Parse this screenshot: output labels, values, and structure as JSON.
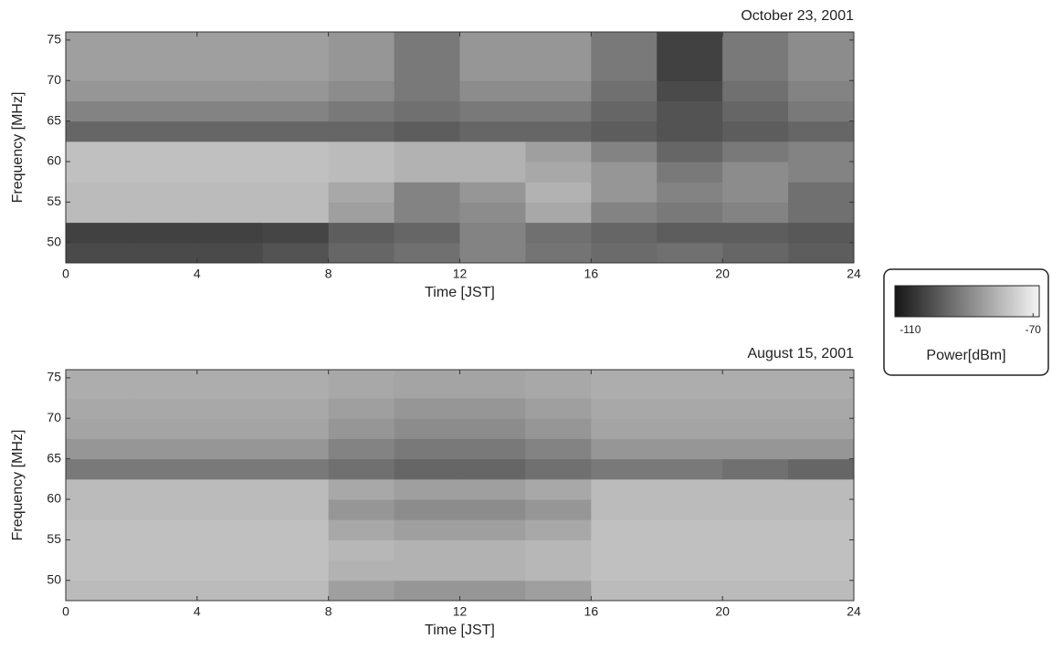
{
  "chart_data": [
    {
      "type": "heatmap",
      "title": "October 23, 2001",
      "x_label": "Time [JST]",
      "y_label": "Frequency [MHz]",
      "xlim": [
        0,
        24
      ],
      "ylim": [
        47.5,
        76
      ],
      "xticks": [
        0,
        4,
        8,
        12,
        16,
        20,
        24
      ],
      "yticks": [
        50,
        55,
        60,
        65,
        70,
        75
      ],
      "x_bins": [
        0,
        2,
        4,
        6,
        8,
        10,
        12,
        14,
        16,
        18,
        20,
        22,
        24
      ],
      "y_bins": [
        47.5,
        50,
        52.5,
        55,
        57.5,
        60,
        62.5,
        65,
        67.5,
        70,
        72.5,
        76
      ],
      "values": [
        [
          -104,
          -104,
          -104,
          -102,
          -98,
          -96,
          -92,
          -95,
          -97,
          -96,
          -98,
          -100
        ],
        [
          -106,
          -106,
          -106,
          -105,
          -100,
          -98,
          -92,
          -96,
          -98,
          -100,
          -100,
          -101
        ],
        [
          -80,
          -80,
          -80,
          -80,
          -86,
          -92,
          -90,
          -84,
          -92,
          -94,
          -92,
          -96
        ],
        [
          -80,
          -80,
          -80,
          -80,
          -84,
          -92,
          -88,
          -82,
          -88,
          -92,
          -90,
          -96
        ],
        [
          -79,
          -79,
          -79,
          -79,
          -80,
          -82,
          -82,
          -84,
          -88,
          -94,
          -90,
          -92
        ],
        [
          -79,
          -79,
          -79,
          -79,
          -80,
          -82,
          -82,
          -86,
          -92,
          -98,
          -94,
          -92
        ],
        [
          -98,
          -98,
          -98,
          -98,
          -98,
          -100,
          -98,
          -98,
          -100,
          -102,
          -100,
          -98
        ],
        [
          -92,
          -92,
          -92,
          -92,
          -94,
          -96,
          -94,
          -94,
          -98,
          -102,
          -98,
          -94
        ],
        [
          -88,
          -88,
          -88,
          -88,
          -90,
          -94,
          -90,
          -90,
          -96,
          -104,
          -96,
          -92
        ],
        [
          -86,
          -86,
          -86,
          -86,
          -88,
          -94,
          -88,
          -88,
          -94,
          -106,
          -94,
          -90
        ],
        [
          -86,
          -86,
          -86,
          -86,
          -88,
          -94,
          -88,
          -88,
          -94,
          -106,
          -94,
          -90
        ]
      ]
    },
    {
      "type": "heatmap",
      "title": "August 15, 2001",
      "x_label": "Time [JST]",
      "y_label": "Frequency [MHz]",
      "xlim": [
        0,
        24
      ],
      "ylim": [
        47.5,
        76
      ],
      "xticks": [
        0,
        4,
        8,
        12,
        16,
        20,
        24
      ],
      "yticks": [
        50,
        55,
        60,
        65,
        70,
        75
      ],
      "x_bins": [
        0,
        2,
        4,
        6,
        8,
        10,
        12,
        14,
        16,
        18,
        20,
        22,
        24
      ],
      "y_bins": [
        47.5,
        50,
        52.5,
        55,
        57.5,
        60,
        62.5,
        65,
        67.5,
        70,
        72.5,
        76
      ],
      "values": [
        [
          -80,
          -80,
          -80,
          -80,
          -86,
          -88,
          -88,
          -86,
          -80,
          -80,
          -80,
          -80
        ],
        [
          -79,
          -79,
          -79,
          -79,
          -82,
          -82,
          -82,
          -81,
          -79,
          -79,
          -79,
          -79
        ],
        [
          -79,
          -79,
          -79,
          -79,
          -81,
          -82,
          -82,
          -81,
          -79,
          -79,
          -79,
          -79
        ],
        [
          -79,
          -79,
          -79,
          -79,
          -84,
          -86,
          -86,
          -84,
          -79,
          -79,
          -79,
          -79
        ],
        [
          -80,
          -80,
          -80,
          -80,
          -88,
          -90,
          -90,
          -88,
          -80,
          -80,
          -80,
          -80
        ],
        [
          -80,
          -80,
          -80,
          -80,
          -84,
          -86,
          -86,
          -84,
          -80,
          -80,
          -80,
          -80
        ],
        [
          -94,
          -94,
          -94,
          -94,
          -96,
          -98,
          -98,
          -96,
          -94,
          -94,
          -96,
          -98
        ],
        [
          -88,
          -88,
          -88,
          -88,
          -92,
          -94,
          -94,
          -92,
          -88,
          -88,
          -88,
          -88
        ],
        [
          -85,
          -85,
          -85,
          -85,
          -88,
          -90,
          -90,
          -88,
          -85,
          -85,
          -85,
          -85
        ],
        [
          -84,
          -84,
          -84,
          -84,
          -86,
          -88,
          -88,
          -86,
          -84,
          -84,
          -84,
          -84
        ],
        [
          -83,
          -83,
          -83,
          -83,
          -84,
          -85,
          -85,
          -84,
          -83,
          -83,
          -83,
          -83
        ]
      ]
    }
  ],
  "colorbar": {
    "label": "Power[dBm]",
    "lim": [
      -115,
      -68
    ],
    "ticks": [
      -110,
      -70
    ],
    "colormap": [
      "#161616",
      "#f4f4f4"
    ]
  }
}
